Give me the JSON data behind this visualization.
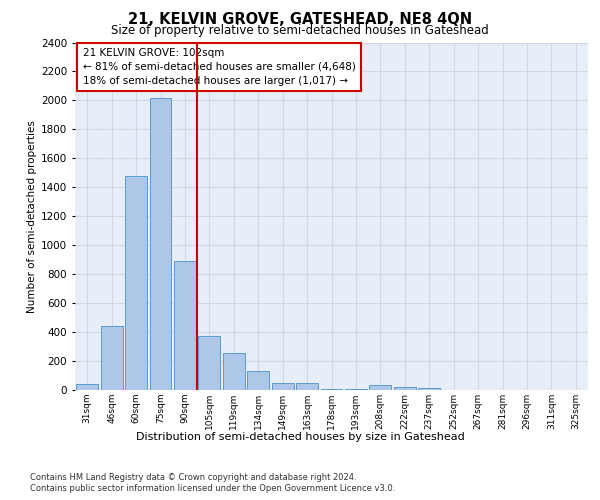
{
  "title": "21, KELVIN GROVE, GATESHEAD, NE8 4QN",
  "subtitle": "Size of property relative to semi-detached houses in Gateshead",
  "xlabel": "Distribution of semi-detached houses by size in Gateshead",
  "ylabel": "Number of semi-detached properties",
  "categories": [
    "31sqm",
    "46sqm",
    "60sqm",
    "75sqm",
    "90sqm",
    "105sqm",
    "119sqm",
    "134sqm",
    "149sqm",
    "163sqm",
    "178sqm",
    "193sqm",
    "208sqm",
    "222sqm",
    "237sqm",
    "252sqm",
    "267sqm",
    "281sqm",
    "296sqm",
    "311sqm",
    "325sqm"
  ],
  "values": [
    40,
    440,
    1480,
    2020,
    890,
    375,
    255,
    130,
    45,
    50,
    5,
    5,
    35,
    20,
    15,
    0,
    0,
    0,
    0,
    0,
    0
  ],
  "bar_color": "#aec6e8",
  "bar_edge_color": "#5b9bd5",
  "annotation_text": "21 KELVIN GROVE: 102sqm\n← 81% of semi-detached houses are smaller (4,648)\n18% of semi-detached houses are larger (1,017) →",
  "annotation_box_color": "#ffffff",
  "annotation_box_edge_color": "#cc0000",
  "vline_color": "#cc0000",
  "ylim": [
    0,
    2400
  ],
  "yticks": [
    0,
    200,
    400,
    600,
    800,
    1000,
    1200,
    1400,
    1600,
    1800,
    2000,
    2200,
    2400
  ],
  "grid_color": "#d0d8e8",
  "background_color": "#e8eef8",
  "footer_line1": "Contains HM Land Registry data © Crown copyright and database right 2024.",
  "footer_line2": "Contains public sector information licensed under the Open Government Licence v3.0."
}
